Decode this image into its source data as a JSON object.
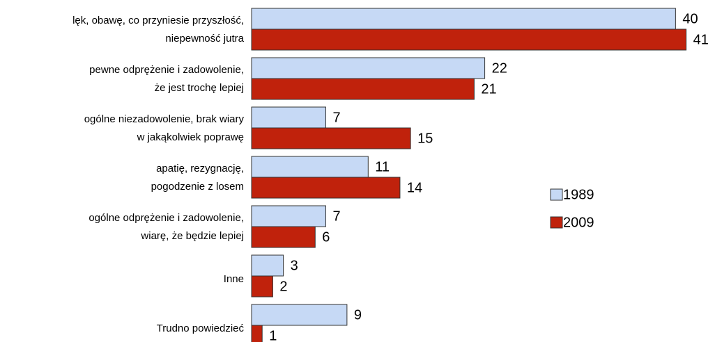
{
  "chart_data": {
    "type": "bar",
    "orientation": "horizontal",
    "categories": [
      [
        "lęk, obawę, co przyniesie przyszłość,",
        "niepewność jutra"
      ],
      [
        "pewne odprężenie i zadowolenie,",
        "że jest trochę lepiej"
      ],
      [
        "ogólne niezadowolenie, brak wiary",
        "w jakąkolwiek poprawę"
      ],
      [
        "apatię, rezygnację,",
        "pogodzenie z losem"
      ],
      [
        "ogólne odprężenie i zadowolenie,",
        "wiarę, że będzie lepiej"
      ],
      [
        "Inne"
      ],
      [
        "Trudno powiedzieć"
      ]
    ],
    "series": [
      {
        "name": "1989",
        "color": "#c6d9f5",
        "values": [
          40,
          22,
          7,
          11,
          7,
          3,
          9
        ]
      },
      {
        "name": "2009",
        "color": "#c0220c",
        "values": [
          41,
          21,
          15,
          14,
          6,
          2,
          1
        ]
      }
    ],
    "xlim": [
      0,
      43
    ],
    "legend": "right"
  }
}
